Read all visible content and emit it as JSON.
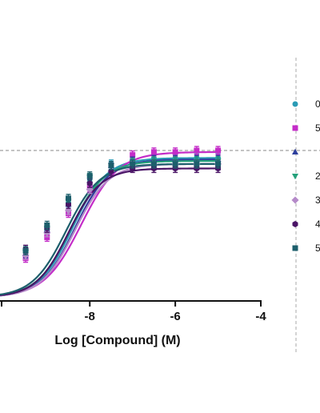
{
  "chart_data": {
    "type": "scatter",
    "xlabel": "Log [Compound] (M)",
    "ylabel": "",
    "x_ticks": [
      "-8",
      "-6",
      "-4"
    ],
    "xlim": [
      -10.1,
      -4
    ],
    "ylim": [
      0,
      100
    ],
    "reference_line_y": 100,
    "legend_position": "right",
    "x": [
      -9.5,
      -9.0,
      -8.5,
      -8.0,
      -7.5,
      -7.0,
      -6.5,
      -6.0,
      -5.5,
      -5.0
    ],
    "series": [
      {
        "marker": "circle",
        "color": "#2a9bb5",
        "values": [
          33,
          47,
          65,
          81,
          91,
          94,
          95,
          95,
          95,
          95
        ],
        "fit": {
          "bottom": 2,
          "top": 95,
          "logec50": -8.4,
          "hill": 1.1
        }
      },
      {
        "marker": "square",
        "color": "#c42cc8",
        "values": [
          28,
          42,
          58,
          75,
          90,
          97,
          99,
          99,
          100,
          100
        ],
        "fit": {
          "bottom": 2,
          "top": 99,
          "logec50": -8.2,
          "hill": 1.0
        }
      },
      {
        "marker": "triangle",
        "color": "#2d3e9c",
        "values": [
          31,
          47,
          64,
          80,
          90,
          93,
          94,
          94,
          94,
          94
        ],
        "fit": {
          "bottom": 2,
          "top": 94,
          "logec50": -8.35,
          "hill": 1.1
        }
      },
      {
        "marker": "triangle-down",
        "color": "#24a07a",
        "values": [
          32,
          48,
          66,
          82,
          90,
          92,
          93,
          93,
          93,
          93
        ],
        "fit": {
          "bottom": 2,
          "top": 93,
          "logec50": -8.45,
          "hill": 1.1
        }
      },
      {
        "marker": "diamond",
        "color": "#b58ac9",
        "values": [
          30,
          45,
          60,
          74,
          86,
          90,
          91,
          91,
          91,
          91
        ],
        "fit": {
          "bottom": 2,
          "top": 91,
          "logec50": -8.35,
          "hill": 1.1
        }
      },
      {
        "marker": "hexagon",
        "color": "#4a1466",
        "values": [
          34,
          48,
          64,
          78,
          86,
          88,
          88,
          88,
          88,
          88
        ],
        "fit": {
          "bottom": 2,
          "top": 88,
          "logec50": -8.5,
          "hill": 1.15
        }
      },
      {
        "marker": "square",
        "color": "#1d5f6c",
        "values": [
          33,
          50,
          68,
          83,
          90,
          91,
          91,
          91,
          91,
          91
        ],
        "fit": {
          "bottom": 2,
          "top": 91,
          "logec50": -8.55,
          "hill": 1.1
        }
      }
    ]
  },
  "legend": {
    "entries": [
      "0",
      "5",
      "",
      "2",
      "3",
      "4",
      "5"
    ]
  }
}
